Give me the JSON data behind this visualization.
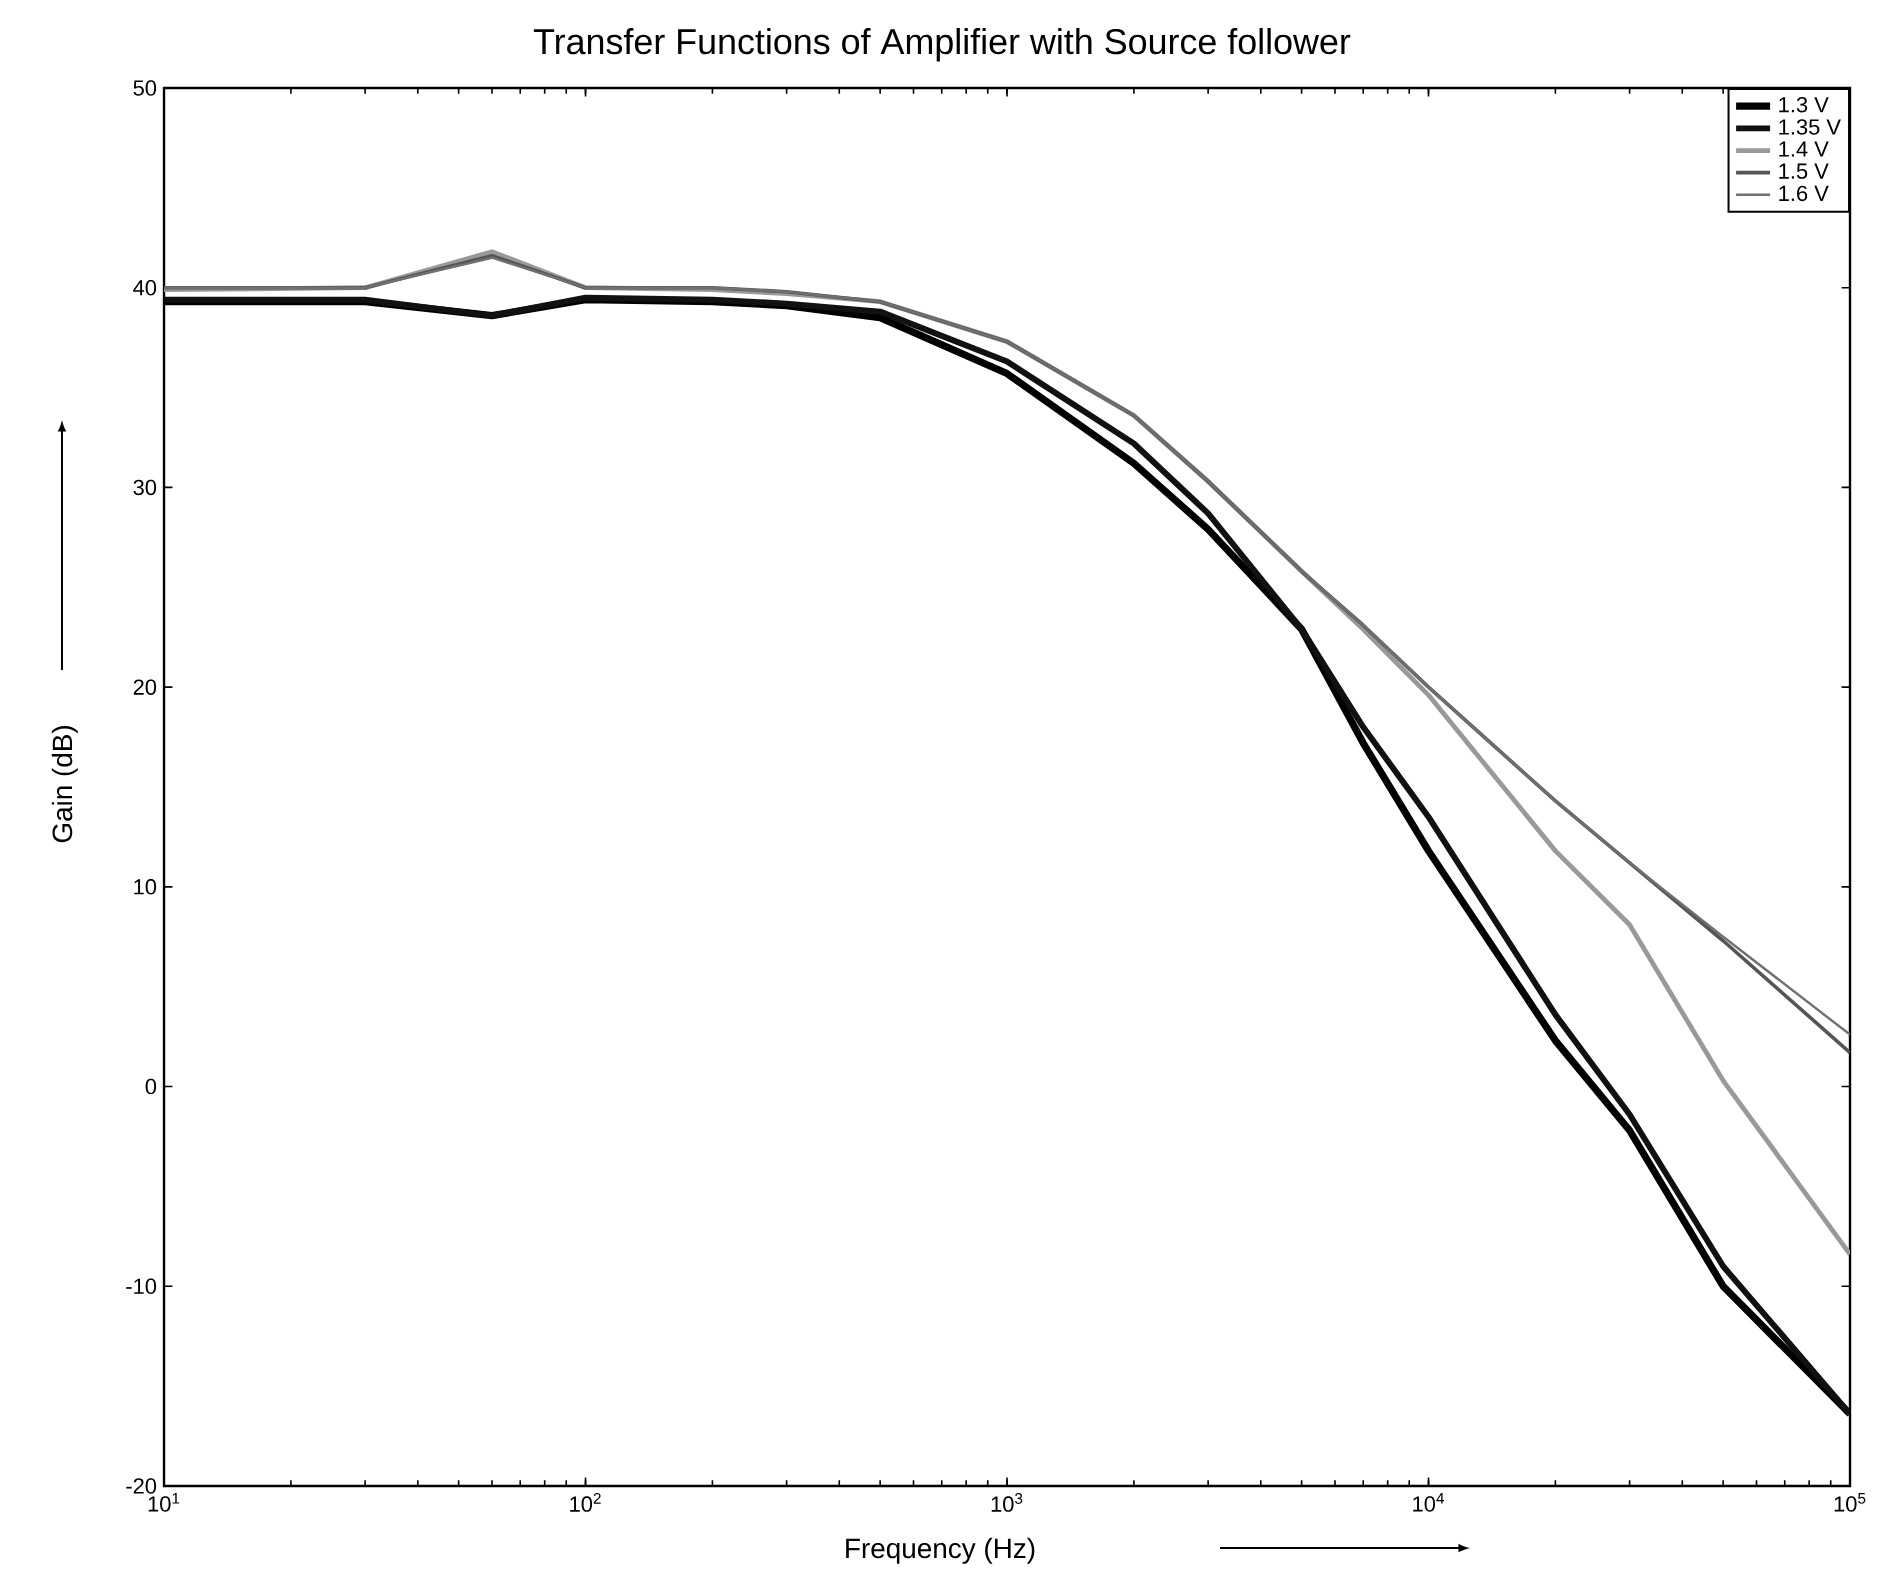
{
  "chart_data": {
    "type": "line",
    "title": "Transfer Functions of Amplifier with Source follower",
    "xlabel": "Frequency (Hz)",
    "ylabel": "Gain (dB)",
    "log": "x",
    "grid": false,
    "legend": "top right",
    "line_style": "solid",
    "marker": "none",
    "xlim": [
      10,
      100000
    ],
    "ylim": [
      -20,
      50
    ],
    "xticks": [
      {
        "value": 10,
        "label": "10$^{1}$"
      },
      {
        "value": 100,
        "label": "10$^{2}$"
      },
      {
        "value": 1000,
        "label": "10$^{3}$"
      },
      {
        "value": 10000,
        "label": "10$^{4}$"
      },
      {
        "value": 100000,
        "label": "10$^{5}$"
      }
    ],
    "yticks": [
      -20,
      -10,
      0,
      10,
      20,
      30,
      40,
      50
    ],
    "x": [
      10,
      30,
      60,
      100,
      200,
      300,
      500,
      1000,
      2000,
      3000,
      5000,
      7000,
      10000,
      20000,
      30000,
      50000,
      100000
    ],
    "series": [
      {
        "name": "1.3 V",
        "color": "#000000",
        "values": [
          39.3,
          39.3,
          38.6,
          39.4,
          39.3,
          39.1,
          38.5,
          35.7,
          31.2,
          27.9,
          22.9,
          17.2,
          11.8,
          2.3,
          -2.2,
          -10,
          -16.4
        ]
      },
      {
        "name": "1.35 V",
        "color": "#111111",
        "values": [
          39.4,
          39.4,
          38.6,
          39.5,
          39.4,
          39.2,
          38.8,
          36.3,
          32.2,
          28.7,
          22.9,
          18,
          13.5,
          3.6,
          -1.4,
          -9,
          -16.4
        ]
      },
      {
        "name": "1.4 V",
        "color": "#999999",
        "values": [
          39.9,
          40,
          41.8,
          40,
          39.9,
          39.7,
          39.3,
          37.3,
          33.6,
          30.3,
          25.8,
          22.9,
          19.6,
          11.8,
          8.1,
          0.3,
          -8.4
        ]
      },
      {
        "name": "1.5 V",
        "color": "#555555",
        "values": [
          40,
          40,
          41.6,
          40,
          40,
          39.8,
          39.3,
          37.3,
          33.6,
          30.3,
          25.8,
          23.1,
          20,
          14.3,
          11.2,
          7.3,
          1.7
        ]
      },
      {
        "name": "1.6 V",
        "color": "#707070",
        "values": [
          40,
          40,
          41.5,
          40,
          40,
          39.8,
          39.3,
          37.3,
          33.6,
          30.3,
          25.8,
          23.1,
          20,
          14.3,
          11.2,
          7.5,
          2.6
        ]
      }
    ]
  }
}
